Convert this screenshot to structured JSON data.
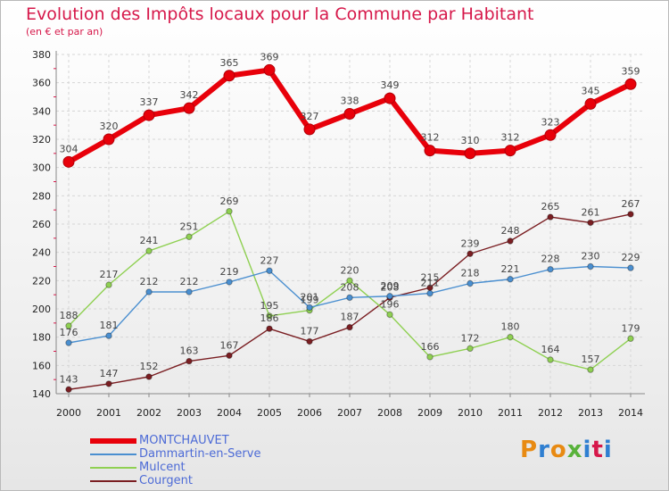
{
  "title": "Evolution des Impôts locaux pour la Commune par Habitant",
  "subtitle": "(en € et par an)",
  "logo": "Proxiti",
  "chart_data": {
    "type": "line",
    "title": "Evolution des Impôts locaux pour la Commune par Habitant",
    "subtitle": "(en € et par an)",
    "x": [
      "2000",
      "2001",
      "2002",
      "2003",
      "2004",
      "2005",
      "2006",
      "2007",
      "2008",
      "2009",
      "2010",
      "2011",
      "2012",
      "2013",
      "2014"
    ],
    "ylim": [
      140,
      380
    ],
    "yticks": [
      140,
      160,
      180,
      200,
      220,
      240,
      260,
      280,
      300,
      320,
      340,
      360,
      380
    ],
    "grid": true,
    "legend_position": "bottom-left",
    "series": [
      {
        "name": "MONTCHAUVET",
        "color": "#e8000a",
        "values": [
          304,
          320,
          337,
          342,
          365,
          369,
          327,
          338,
          349,
          312,
          310,
          312,
          323,
          345,
          359
        ]
      },
      {
        "name": "Dammartin-en-Serve",
        "color": "#4a8fd0",
        "values": [
          176,
          181,
          212,
          212,
          219,
          227,
          201,
          208,
          209,
          211,
          218,
          221,
          228,
          230,
          229
        ]
      },
      {
        "name": "Mulcent",
        "color": "#8fd052",
        "values": [
          188,
          217,
          241,
          251,
          269,
          195,
          199,
          220,
          196,
          166,
          172,
          180,
          164,
          157,
          179
        ]
      },
      {
        "name": "Courgent",
        "color": "#7a1e22",
        "values": [
          143,
          147,
          152,
          163,
          167,
          186,
          177,
          187,
          208,
          215,
          239,
          248,
          265,
          261,
          267
        ]
      }
    ]
  }
}
